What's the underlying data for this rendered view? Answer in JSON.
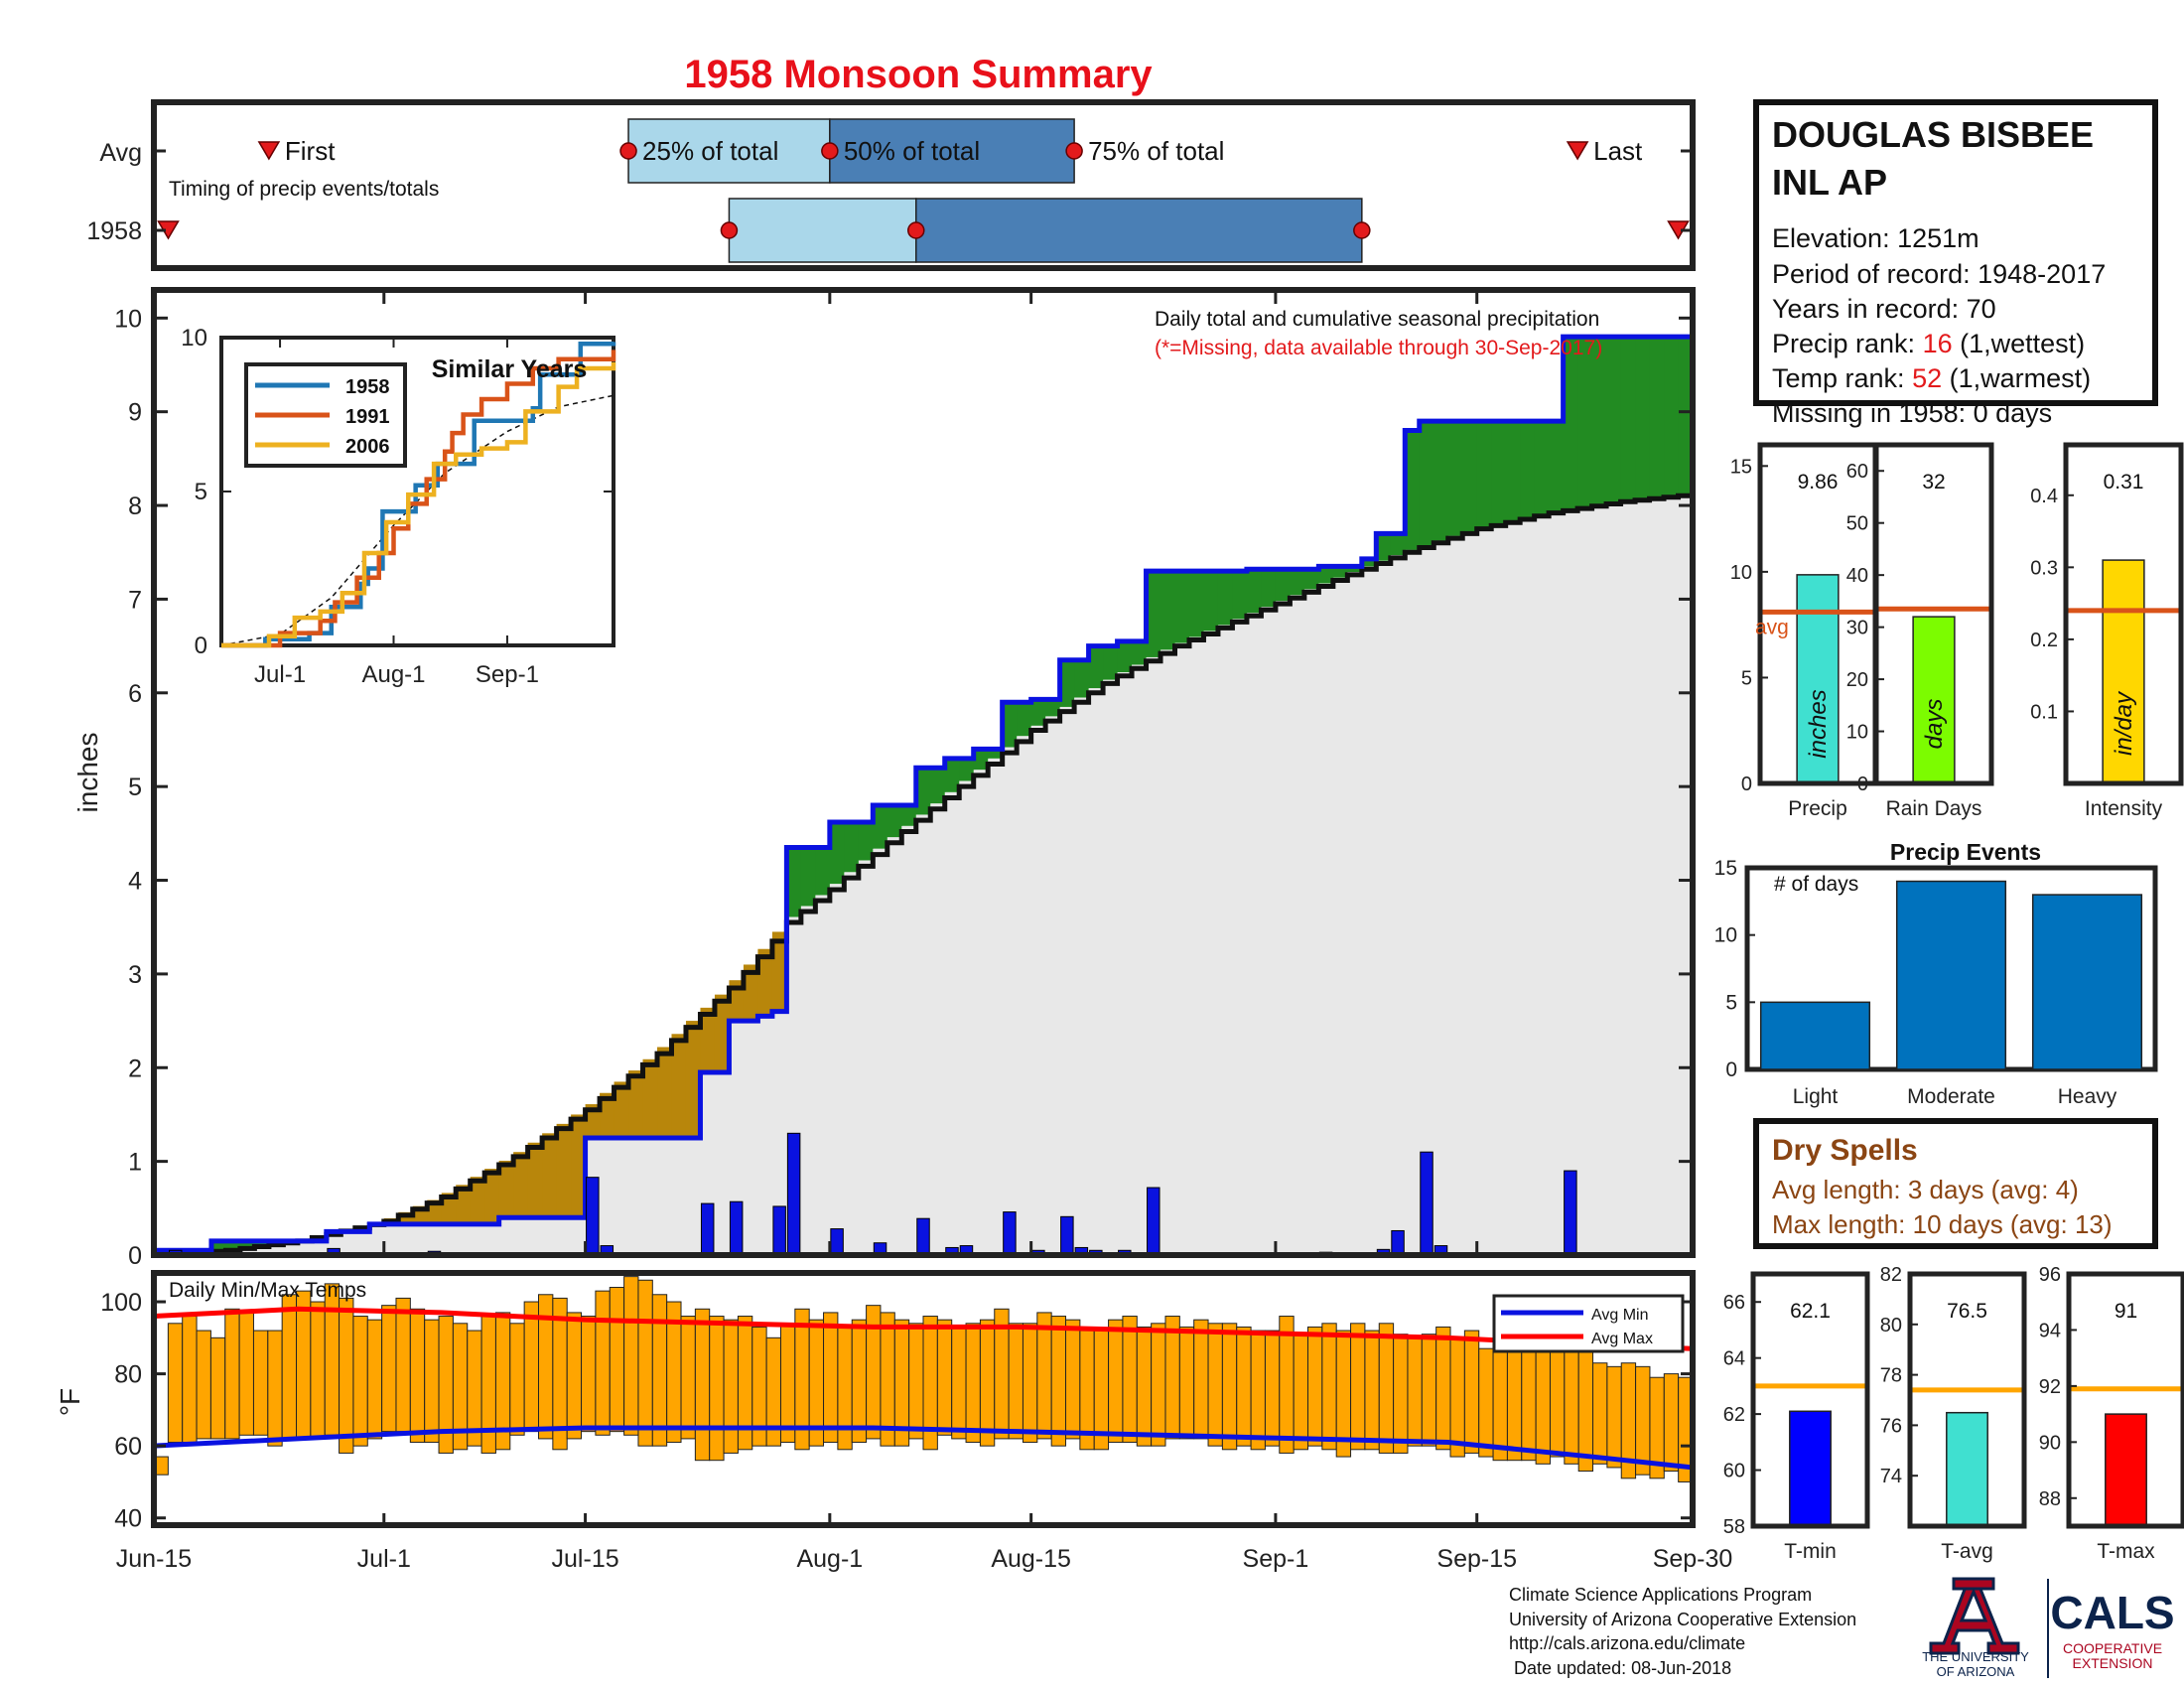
{
  "page": {
    "title": "1958 Monsoon Summary",
    "colors": {
      "title": "#e8101a",
      "red": "#e31a1c"
    }
  },
  "timing": {
    "label_avg": "Avg",
    "label_year": "1958",
    "caption": "Timing of precip events/totals",
    "first_label": "First",
    "last_label": "Last",
    "p25_label": "25% of total",
    "p50_label": "50% of total",
    "p75_label": "75% of total",
    "avg_markers": {
      "first": "2021-06-23",
      "p25": "2021-07-18",
      "p50": "2021-08-01",
      "p75": "2021-08-18",
      "last": "2021-09-22"
    },
    "year_markers": {
      "first": "2021-06-16",
      "p25": "2021-07-25",
      "p50": "2021-08-07",
      "p75": "2021-09-07",
      "last": "2021-09-29"
    }
  },
  "station": {
    "name_line1": "DOUGLAS BISBEE",
    "name_line2": "INL AP",
    "elevation_label": "Elevation: 1251m",
    "period_label": "Period of record: 1948-2017",
    "years_label": "Years in record: 70",
    "precip_rank_prefix": "Precip rank: ",
    "precip_rank_value": "16",
    "precip_rank_suffix": " (1,wettest)",
    "temp_rank_prefix": "Temp rank: ",
    "temp_rank_value": "52",
    "temp_rank_suffix": " (1,warmest)",
    "missing_label": "Missing in 1958: 0 days"
  },
  "chart_data": [
    {
      "id": "cumulative",
      "type": "area",
      "ylabel": "inches",
      "ylim": [
        0,
        10.3
      ],
      "yticks": [
        0,
        1,
        2,
        3,
        4,
        5,
        6,
        7,
        8,
        9,
        10
      ],
      "xlim": [
        "2021-06-15",
        "2021-09-30"
      ],
      "xtick_dates": [
        "2021-06-15",
        "2021-07-01",
        "2021-07-15",
        "2021-08-01",
        "2021-08-15",
        "2021-09-01",
        "2021-09-15",
        "2021-09-30"
      ],
      "xtick_labels": [
        "Jun-15",
        "Jul-1",
        "Jul-15",
        "Aug-1",
        "Aug-15",
        "Sep-1",
        "Sep-15",
        "Sep-30"
      ],
      "annotation": "Daily total and cumulative seasonal precipitation",
      "annotation_red": "(*=Missing, data available through 30-Sep-2017)",
      "year_cumulative": [
        [
          "2021-06-15",
          0.05
        ],
        [
          "2021-06-19",
          0.15
        ],
        [
          "2021-06-27",
          0.25
        ],
        [
          "2021-06-30",
          0.33
        ],
        [
          "2021-07-09",
          0.4
        ],
        [
          "2021-07-15",
          1.25
        ],
        [
          "2021-07-16",
          1.25
        ],
        [
          "2021-07-23",
          1.95
        ],
        [
          "2021-07-25",
          2.5
        ],
        [
          "2021-07-27",
          2.55
        ],
        [
          "2021-07-28",
          2.6
        ],
        [
          "2021-07-29",
          4.35
        ],
        [
          "2021-08-01",
          4.62
        ],
        [
          "2021-08-04",
          4.8
        ],
        [
          "2021-08-07",
          5.2
        ],
        [
          "2021-08-09",
          5.3
        ],
        [
          "2021-08-11",
          5.4
        ],
        [
          "2021-08-13",
          5.9
        ],
        [
          "2021-08-15",
          5.93
        ],
        [
          "2021-08-17",
          6.35
        ],
        [
          "2021-08-19",
          6.5
        ],
        [
          "2021-08-21",
          6.55
        ],
        [
          "2021-08-23",
          7.3
        ],
        [
          "2021-08-30",
          7.32
        ],
        [
          "2021-09-04",
          7.35
        ],
        [
          "2021-09-07",
          7.43
        ],
        [
          "2021-09-08",
          7.7
        ],
        [
          "2021-09-10",
          8.8
        ],
        [
          "2021-09-11",
          8.9
        ],
        [
          "2021-09-21",
          9.8
        ],
        [
          "2021-09-30",
          9.86
        ]
      ],
      "avg_cumulative": [
        [
          "2021-06-15",
          0.0
        ],
        [
          "2021-06-20",
          0.05
        ],
        [
          "2021-06-25",
          0.15
        ],
        [
          "2021-07-01",
          0.36
        ],
        [
          "2021-07-05",
          0.62
        ],
        [
          "2021-07-10",
          1.05
        ],
        [
          "2021-07-15",
          1.55
        ],
        [
          "2021-07-20",
          2.15
        ],
        [
          "2021-07-25",
          2.85
        ],
        [
          "2021-07-28",
          3.35
        ],
        [
          "2021-07-29",
          3.55
        ],
        [
          "2021-08-01",
          3.9
        ],
        [
          "2021-08-05",
          4.4
        ],
        [
          "2021-08-10",
          5.0
        ],
        [
          "2021-08-15",
          5.6
        ],
        [
          "2021-08-20",
          6.1
        ],
        [
          "2021-08-25",
          6.5
        ],
        [
          "2021-09-01",
          6.95
        ],
        [
          "2021-09-05",
          7.2
        ],
        [
          "2021-09-10",
          7.5
        ],
        [
          "2021-09-15",
          7.75
        ],
        [
          "2021-09-20",
          7.92
        ],
        [
          "2021-09-25",
          8.04
        ],
        [
          "2021-09-30",
          8.12
        ]
      ],
      "daily_precip": [
        [
          "2021-06-16",
          0.05
        ],
        [
          "2021-06-27",
          0.07
        ],
        [
          "2021-07-04",
          0.04
        ],
        [
          "2021-07-15",
          0.83
        ],
        [
          "2021-07-16",
          0.1
        ],
        [
          "2021-07-23",
          0.55
        ],
        [
          "2021-07-25",
          0.57
        ],
        [
          "2021-07-28",
          0.52
        ],
        [
          "2021-07-29",
          1.3
        ],
        [
          "2021-08-01",
          0.28
        ],
        [
          "2021-08-04",
          0.13
        ],
        [
          "2021-08-07",
          0.39
        ],
        [
          "2021-08-09",
          0.08
        ],
        [
          "2021-08-10",
          0.1
        ],
        [
          "2021-08-13",
          0.46
        ],
        [
          "2021-08-15",
          0.05
        ],
        [
          "2021-08-17",
          0.41
        ],
        [
          "2021-08-18",
          0.08
        ],
        [
          "2021-08-19",
          0.05
        ],
        [
          "2021-08-21",
          0.05
        ],
        [
          "2021-08-23",
          0.72
        ],
        [
          "2021-09-04",
          0.03
        ],
        [
          "2021-09-08",
          0.06
        ],
        [
          "2021-09-09",
          0.26
        ],
        [
          "2021-09-11",
          1.1
        ],
        [
          "2021-09-12",
          0.1
        ],
        [
          "2021-09-21",
          0.9
        ]
      ],
      "colors": {
        "above": "#228b22",
        "below": "#b8860b",
        "base": "#e8e8e8",
        "year_line": "#0a12e0",
        "avg_line": "#111111",
        "bars": "#0a12e0"
      }
    },
    {
      "id": "similar_years",
      "type": "line",
      "title": "Similar Years",
      "ylim": [
        0,
        10
      ],
      "yticks": [
        0,
        5,
        10
      ],
      "xtick_dates": [
        "2021-07-01",
        "2021-08-01",
        "2021-09-01"
      ],
      "xtick_labels": [
        "Jul-1",
        "Aug-1",
        "Sep-1"
      ],
      "xlim": [
        "2021-06-15",
        "2021-09-30"
      ],
      "series": [
        {
          "name": "1958",
          "color": "#1f77b4",
          "points": [
            [
              "2021-06-15",
              0
            ],
            [
              "2021-06-27",
              0.2
            ],
            [
              "2021-07-09",
              0.4
            ],
            [
              "2021-07-15",
              1.25
            ],
            [
              "2021-07-23",
              2.0
            ],
            [
              "2021-07-25",
              2.5
            ],
            [
              "2021-07-29",
              4.35
            ],
            [
              "2021-08-07",
              5.2
            ],
            [
              "2021-08-13",
              5.9
            ],
            [
              "2021-08-23",
              7.3
            ],
            [
              "2021-09-08",
              7.7
            ],
            [
              "2021-09-10",
              8.8
            ],
            [
              "2021-09-21",
              9.8
            ],
            [
              "2021-09-30",
              9.86
            ]
          ]
        },
        {
          "name": "1991",
          "color": "#d95319",
          "points": [
            [
              "2021-06-15",
              0
            ],
            [
              "2021-07-01",
              0.4
            ],
            [
              "2021-07-12",
              0.8
            ],
            [
              "2021-07-16",
              1.4
            ],
            [
              "2021-07-22",
              2.2
            ],
            [
              "2021-07-28",
              3.0
            ],
            [
              "2021-08-01",
              3.8
            ],
            [
              "2021-08-05",
              4.6
            ],
            [
              "2021-08-10",
              5.4
            ],
            [
              "2021-08-15",
              6.3
            ],
            [
              "2021-08-17",
              6.9
            ],
            [
              "2021-08-20",
              7.5
            ],
            [
              "2021-08-25",
              8.0
            ],
            [
              "2021-09-01",
              8.5
            ],
            [
              "2021-09-08",
              9.0
            ],
            [
              "2021-09-15",
              9.3
            ],
            [
              "2021-09-30",
              9.6
            ]
          ]
        },
        {
          "name": "2006",
          "color": "#edb120",
          "points": [
            [
              "2021-06-15",
              0
            ],
            [
              "2021-06-28",
              0.3
            ],
            [
              "2021-07-05",
              0.9
            ],
            [
              "2021-07-12",
              1.1
            ],
            [
              "2021-07-18",
              1.7
            ],
            [
              "2021-07-24",
              3.0
            ],
            [
              "2021-07-30",
              4.0
            ],
            [
              "2021-08-05",
              4.9
            ],
            [
              "2021-08-12",
              5.9
            ],
            [
              "2021-08-18",
              6.2
            ],
            [
              "2021-08-25",
              6.4
            ],
            [
              "2021-09-01",
              6.6
            ],
            [
              "2021-09-06",
              7.6
            ],
            [
              "2021-09-15",
              8.4
            ],
            [
              "2021-09-20",
              9.0
            ],
            [
              "2021-09-30",
              9.2
            ]
          ]
        }
      ],
      "avg_dashed": [
        [
          "2021-06-15",
          0
        ],
        [
          "2021-07-01",
          0.36
        ],
        [
          "2021-07-15",
          1.55
        ],
        [
          "2021-08-01",
          3.9
        ],
        [
          "2021-08-15",
          5.6
        ],
        [
          "2021-09-01",
          6.95
        ],
        [
          "2021-09-15",
          7.75
        ],
        [
          "2021-09-30",
          8.12
        ]
      ]
    },
    {
      "id": "temps",
      "type": "bar",
      "title": "Daily Min/Max Temps",
      "ylabel": "°F",
      "ylim": [
        38,
        108
      ],
      "yticks": [
        40,
        60,
        80,
        100
      ],
      "xlim": [
        "2021-06-15",
        "2021-09-30"
      ],
      "legend": [
        "Avg Min",
        "Avg Max"
      ],
      "bar_color": "#ffa500",
      "avg_min_color": "#0a12e0",
      "avg_max_color": "#ff0000",
      "daily_max": [
        57,
        94,
        96,
        92,
        90,
        98,
        97,
        92,
        92,
        102,
        103,
        100,
        105,
        101,
        96,
        95,
        99,
        101,
        98,
        95,
        96,
        94,
        92,
        96,
        97,
        94,
        100,
        102,
        101,
        97,
        96,
        103,
        104,
        107,
        106,
        102,
        100,
        96,
        98,
        96,
        95,
        96,
        93,
        90,
        94,
        98,
        95,
        97,
        93,
        95,
        99,
        97,
        95,
        94,
        96,
        95,
        93,
        94,
        95,
        98,
        94,
        94,
        97,
        96,
        95,
        92,
        92,
        95,
        96,
        93,
        94,
        96,
        93,
        95,
        94,
        94,
        93,
        92,
        92,
        96,
        91,
        93,
        94,
        92,
        94,
        92,
        94,
        91,
        90,
        91,
        93,
        90,
        92,
        87,
        87,
        90,
        91,
        87,
        89,
        86,
        86,
        83,
        82,
        83,
        82,
        79,
        80,
        79
      ],
      "daily_min": [
        52,
        61,
        61,
        62,
        62,
        62,
        63,
        63,
        60,
        62,
        62,
        62,
        63,
        58,
        60,
        62,
        64,
        64,
        61,
        61,
        58,
        59,
        60,
        58,
        59,
        63,
        64,
        62,
        59,
        62,
        64,
        63,
        64,
        63,
        60,
        60,
        61,
        62,
        56,
        56,
        58,
        59,
        60,
        60,
        61,
        59,
        60,
        61,
        59,
        61,
        62,
        60,
        60,
        62,
        59,
        63,
        62,
        61,
        60,
        62,
        62,
        61,
        62,
        60,
        62,
        59,
        59,
        61,
        61,
        60,
        60,
        62,
        62,
        62,
        60,
        59,
        60,
        59,
        60,
        58,
        59,
        60,
        59,
        57,
        59,
        59,
        58,
        58,
        60,
        60,
        59,
        57,
        58,
        57,
        56,
        56,
        56,
        55,
        57,
        55,
        53,
        55,
        54,
        51,
        52,
        51,
        53,
        50
      ],
      "avg_max": [
        [
          0,
          96
        ],
        [
          10,
          98
        ],
        [
          20,
          97
        ],
        [
          30,
          95
        ],
        [
          40,
          94
        ],
        [
          50,
          93
        ],
        [
          60,
          93
        ],
        [
          70,
          92
        ],
        [
          80,
          91
        ],
        [
          90,
          90
        ],
        [
          100,
          88
        ],
        [
          107,
          87
        ]
      ],
      "avg_min": [
        [
          0,
          60
        ],
        [
          10,
          62
        ],
        [
          20,
          64
        ],
        [
          30,
          65
        ],
        [
          40,
          65
        ],
        [
          50,
          65
        ],
        [
          60,
          64
        ],
        [
          70,
          63
        ],
        [
          80,
          62
        ],
        [
          90,
          61
        ],
        [
          100,
          57
        ],
        [
          107,
          54
        ]
      ]
    },
    {
      "id": "season_stats",
      "type": "bar",
      "panels": [
        {
          "name": "Precip",
          "value": 9.86,
          "value_label": "9.86",
          "avg": 8.1,
          "ylim": [
            0,
            16
          ],
          "yticks": [
            0,
            5,
            10,
            15
          ],
          "color": "#40e0d0",
          "unit": "inches",
          "avg_text": "avg"
        },
        {
          "name": "Rain Days",
          "value": 32,
          "value_label": "32",
          "avg": 33.5,
          "ylim": [
            0,
            65
          ],
          "yticks": [
            0,
            10,
            20,
            30,
            40,
            50,
            60
          ],
          "color": "#7cfc00",
          "unit": "days"
        },
        {
          "name": "Intensity",
          "value": 0.31,
          "value_label": "0.31",
          "avg": 0.24,
          "ylim": [
            0,
            0.47
          ],
          "yticks": [
            0.1,
            0.2,
            0.3,
            0.4
          ],
          "color": "#ffd700",
          "unit": "in/day"
        }
      ],
      "avg_line_color": "#d95319"
    },
    {
      "id": "precip_events",
      "type": "bar",
      "title": "Precip Events",
      "ylabel_inner": "# of days",
      "categories": [
        "Light",
        "Moderate",
        "Heavy"
      ],
      "values": [
        5,
        14,
        13
      ],
      "ylim": [
        0,
        15
      ],
      "yticks": [
        0,
        5,
        10,
        15
      ],
      "color": "#0072bd"
    },
    {
      "id": "temp_stats",
      "type": "bar",
      "panels": [
        {
          "name": "T-min",
          "value": 62.1,
          "value_label": "62.1",
          "avg": 63.0,
          "ylim": [
            58,
            67
          ],
          "yticks": [
            58,
            60,
            62,
            64,
            66
          ],
          "color": "#0000ff"
        },
        {
          "name": "T-avg",
          "value": 76.5,
          "value_label": "76.5",
          "avg": 77.4,
          "ylim": [
            72,
            82
          ],
          "yticks": [
            74,
            76,
            78,
            80,
            82
          ],
          "color": "#40e0d0"
        },
        {
          "name": "T-max",
          "value": 91,
          "value_label": "91",
          "avg": 91.9,
          "ylim": [
            87,
            96
          ],
          "yticks": [
            88,
            90,
            92,
            94,
            96
          ],
          "color": "#ff0000"
        }
      ],
      "avg_line_color": "#ffa500"
    }
  ],
  "dry_spells": {
    "title": "Dry Spells",
    "avg_length": "Avg length: 3 days (avg: 4)",
    "max_length": "Max length: 10 days (avg: 13)",
    "color": "#8b4513"
  },
  "footer": {
    "line1": "Climate Science Applications Program",
    "line2": "University of Arizona Cooperative Extension",
    "line3": "http://cals.arizona.edu/climate",
    "line4": " Date updated: 08-Jun-2018",
    "ua_text1": "THE UNIVERSITY",
    "ua_text2": "OF ARIZONA",
    "cals_text": "CALS",
    "cals_sub1": "COOPERATIVE",
    "cals_sub2": "EXTENSION",
    "colors": {
      "ua_red": "#ab0520",
      "ua_blue": "#0c234b"
    }
  }
}
